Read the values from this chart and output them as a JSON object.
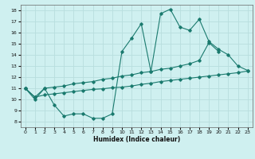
{
  "title": "",
  "xlabel": "Humidex (Indice chaleur)",
  "bg_color": "#cff0f0",
  "line_color": "#1a7a6e",
  "grid_color": "#b8dede",
  "xlim": [
    -0.5,
    23.5
  ],
  "ylim": [
    7.5,
    18.5
  ],
  "xticks": [
    0,
    1,
    2,
    3,
    4,
    5,
    6,
    7,
    8,
    9,
    10,
    11,
    12,
    13,
    14,
    15,
    16,
    17,
    18,
    19,
    20,
    21,
    22,
    23
  ],
  "yticks": [
    8,
    9,
    10,
    11,
    12,
    13,
    14,
    15,
    16,
    17,
    18
  ],
  "main_line_x": [
    0,
    1,
    2,
    3,
    4,
    5,
    6,
    7,
    8,
    9,
    10,
    11,
    12,
    13,
    14,
    15,
    16,
    17,
    18,
    19,
    20,
    21,
    22,
    23
  ],
  "main_line_y": [
    11,
    10,
    11,
    9.5,
    8.5,
    8.7,
    8.7,
    8.3,
    8.3,
    8.7,
    14.3,
    15.5,
    16.8,
    12.5,
    17.7,
    18.1,
    16.5,
    16.2,
    17.2,
    15.2,
    14.5,
    14.0,
    13.0,
    12.6
  ],
  "upper_line_x": [
    0,
    1,
    2,
    3,
    4,
    5,
    6,
    7,
    8,
    9,
    10,
    11,
    12,
    13,
    14,
    15,
    16,
    17,
    18,
    19,
    20
  ],
  "upper_line_y": [
    11,
    10.2,
    11.0,
    11.1,
    11.2,
    11.4,
    11.5,
    11.6,
    11.8,
    11.9,
    12.1,
    12.2,
    12.4,
    12.5,
    12.7,
    12.8,
    13.0,
    13.2,
    13.5,
    15.1,
    14.3
  ],
  "lower_line_x": [
    0,
    1,
    2,
    3,
    4,
    5,
    6,
    7,
    8,
    9,
    10,
    11,
    12,
    13,
    14,
    15,
    16,
    17,
    18,
    19,
    20,
    21,
    22,
    23
  ],
  "lower_line_y": [
    11,
    10.2,
    10.4,
    10.5,
    10.6,
    10.7,
    10.8,
    10.9,
    10.95,
    11.05,
    11.1,
    11.2,
    11.35,
    11.45,
    11.6,
    11.7,
    11.8,
    11.9,
    12.0,
    12.1,
    12.2,
    12.3,
    12.4,
    12.55
  ]
}
